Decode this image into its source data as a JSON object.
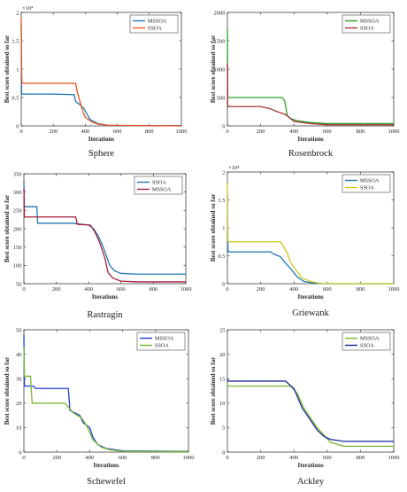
{
  "chart_data": [
    {
      "type": "line",
      "caption": "Sphere",
      "xlabel": "Iterations",
      "ylabel": "Best score obtained so far",
      "xlim": [
        0,
        1000
      ],
      "ylim": [
        0,
        20000
      ],
      "xticks": [
        0,
        200,
        400,
        600,
        800,
        1000
      ],
      "xtick_labels": [
        "0",
        "200",
        "400",
        "600",
        "800",
        "1000"
      ],
      "yticks": [
        0,
        5000,
        10000,
        15000,
        20000
      ],
      "ytick_labels": [
        "0",
        "0.5",
        "1",
        "1.5",
        "2"
      ],
      "exponent_label": "×10⁴",
      "legend_position": "top-right",
      "series": [
        {
          "name": "MSSOA",
          "color": "#1f77b4",
          "x": [
            0,
            2,
            3,
            200,
            330,
            340,
            360,
            390,
            430,
            480,
            540,
            600,
            1000
          ],
          "y": [
            18000,
            6500,
            5600,
            5600,
            5500,
            4300,
            3900,
            3100,
            1100,
            400,
            100,
            50,
            50
          ]
        },
        {
          "name": "SSOA",
          "color": "#e8541e",
          "x": [
            0,
            3,
            5,
            340,
            350,
            365,
            385,
            400,
            440,
            480,
            550,
            1000
          ],
          "y": [
            19000,
            9000,
            7500,
            7500,
            6000,
            4500,
            2500,
            1500,
            700,
            300,
            100,
            0
          ]
        }
      ]
    },
    {
      "type": "line",
      "caption": "Rosenbrock",
      "xlabel": "Iterations",
      "ylabel": "Best score obtained so far",
      "xlim": [
        0,
        1000
      ],
      "ylim": [
        0,
        2000
      ],
      "xticks": [
        0,
        200,
        400,
        600,
        800,
        1000
      ],
      "xtick_labels": [
        "0",
        "200",
        "400",
        "600",
        "800",
        "1000"
      ],
      "yticks": [
        0,
        500,
        1000,
        1500,
        2000
      ],
      "ytick_labels": [
        "0",
        "500",
        "1000",
        "1500",
        "2000"
      ],
      "legend_position": "top-right",
      "series": [
        {
          "name": "MSSOA",
          "color": "#2ca02c",
          "x": [
            0,
            2,
            3,
            330,
            345,
            360,
            380,
            420,
            500,
            600,
            1000
          ],
          "y": [
            1700,
            600,
            500,
            500,
            440,
            180,
            130,
            90,
            60,
            40,
            40
          ]
        },
        {
          "name": "SSOA",
          "color": "#a83232",
          "x": [
            0,
            2,
            3,
            200,
            260,
            300,
            350,
            400,
            500,
            600,
            1000
          ],
          "y": [
            1100,
            380,
            340,
            340,
            300,
            250,
            200,
            80,
            40,
            20,
            20
          ]
        }
      ]
    },
    {
      "type": "line",
      "caption": "Rastragin",
      "xlabel": "Iterations",
      "ylabel": "Best score obtained so far",
      "xlim": [
        0,
        1000
      ],
      "ylim": [
        50,
        350
      ],
      "xticks": [
        0,
        200,
        400,
        600,
        800,
        1000
      ],
      "xtick_labels": [
        "0",
        "200",
        "400",
        "600",
        "800",
        "1000"
      ],
      "yticks": [
        50,
        100,
        150,
        200,
        250,
        300,
        350
      ],
      "ytick_labels": [
        "50",
        "100",
        "150",
        "200",
        "250",
        "300",
        "350"
      ],
      "legend_position": "top-right",
      "series": [
        {
          "name": "SSOA",
          "color": "#1f77b4",
          "x": [
            0,
            3,
            80,
            85,
            300,
            400,
            430,
            460,
            490,
            530,
            560,
            600,
            700,
            1000
          ],
          "y": [
            330,
            260,
            260,
            215,
            215,
            210,
            200,
            180,
            150,
            100,
            85,
            78,
            76,
            76
          ]
        },
        {
          "name": "MSSOA",
          "color": "#a81e3c",
          "x": [
            0,
            3,
            320,
            330,
            410,
            440,
            470,
            500,
            520,
            550,
            600,
            700,
            1000
          ],
          "y": [
            310,
            232,
            232,
            212,
            210,
            190,
            160,
            120,
            80,
            65,
            57,
            55,
            55
          ]
        }
      ]
    },
    {
      "type": "line",
      "caption": "Griewank",
      "xlabel": "Iterations",
      "ylabel": "Best score obtained so far",
      "xlim": [
        0,
        1000
      ],
      "ylim": [
        0,
        20000
      ],
      "xticks": [
        0,
        200,
        400,
        600,
        800,
        1000
      ],
      "xtick_labels": [
        "0",
        "200",
        "400",
        "600",
        "800",
        "1000"
      ],
      "yticks": [
        0,
        5000,
        10000,
        15000,
        20000
      ],
      "ytick_labels": [
        "0",
        "0.5",
        "1",
        "1.5",
        "2"
      ],
      "exponent_label": "×10⁴",
      "legend_position": "top-right",
      "series": [
        {
          "name": "MSSOA",
          "color": "#1f77b4",
          "x": [
            0,
            3,
            5,
            260,
            280,
            320,
            340,
            380,
            420,
            460,
            520,
            600,
            1000
          ],
          "y": [
            16000,
            6500,
            5700,
            5700,
            5300,
            4800,
            4000,
            2700,
            1200,
            400,
            100,
            0,
            0
          ]
        },
        {
          "name": "SSOA",
          "color": "#c9c91e",
          "x": [
            0,
            3,
            5,
            320,
            340,
            360,
            380,
            410,
            450,
            500,
            550,
            600,
            1000
          ],
          "y": [
            18000,
            8000,
            7500,
            7500,
            6500,
            5500,
            3800,
            2500,
            1000,
            400,
            100,
            0,
            0
          ]
        }
      ]
    },
    {
      "type": "line",
      "caption": "Schewefel",
      "xlabel": "Iterations",
      "ylabel": "Best score obtained so far",
      "xlim": [
        0,
        1000
      ],
      "ylim": [
        0,
        50
      ],
      "xticks": [
        0,
        200,
        400,
        600,
        800,
        1000
      ],
      "xtick_labels": [
        "0",
        "200",
        "400",
        "600",
        "800",
        "1000"
      ],
      "yticks": [
        0,
        10,
        20,
        30,
        40,
        50
      ],
      "ytick_labels": [
        "0",
        "10",
        "20",
        "30",
        "40",
        "50"
      ],
      "legend_position": "top-right",
      "series": [
        {
          "name": "MSSOA",
          "color": "#1f3fd0",
          "x": [
            0,
            3,
            60,
            70,
            270,
            280,
            340,
            360,
            400,
            420,
            450,
            500,
            600,
            1000
          ],
          "y": [
            48,
            27,
            27,
            26,
            26,
            17,
            15,
            12,
            10,
            6,
            3,
            1.5,
            0.5,
            0.3
          ]
        },
        {
          "name": "SSOA",
          "color": "#78b832",
          "x": [
            0,
            3,
            40,
            50,
            250,
            300,
            350,
            380,
            420,
            470,
            520,
            600,
            1000
          ],
          "y": [
            43,
            31,
            31,
            20,
            20,
            16,
            14,
            11,
            5,
            2,
            1,
            0.3,
            0.2
          ]
        }
      ]
    },
    {
      "type": "line",
      "caption": "Ackley",
      "xlabel": "Iterations",
      "ylabel": "Best score obtained so far",
      "xlim": [
        0,
        1000
      ],
      "ylim": [
        0,
        25
      ],
      "xticks": [
        0,
        200,
        400,
        600,
        800,
        1000
      ],
      "xtick_labels": [
        "0",
        "200",
        "400",
        "600",
        "800",
        "1000"
      ],
      "yticks": [
        0,
        5,
        10,
        15,
        20,
        25
      ],
      "ytick_labels": [
        "0",
        "5",
        "10",
        "15",
        "20",
        "25"
      ],
      "legend_position": "top-right",
      "series": [
        {
          "name": "MSSOA",
          "color": "#78b832",
          "x": [
            0,
            3,
            380,
            420,
            460,
            500,
            540,
            580,
            620,
            700,
            1000
          ],
          "y": [
            14,
            13.5,
            13.5,
            12,
            9,
            7,
            5,
            3.5,
            2,
            1.2,
            1.2
          ]
        },
        {
          "name": "SSOA",
          "color": "#1a2a9a",
          "x": [
            0,
            3,
            350,
            400,
            450,
            500,
            540,
            580,
            620,
            700,
            1000
          ],
          "y": [
            15,
            14.5,
            14.5,
            13,
            9,
            6.5,
            4.5,
            3.2,
            2.6,
            2.2,
            2.2
          ]
        }
      ]
    }
  ]
}
